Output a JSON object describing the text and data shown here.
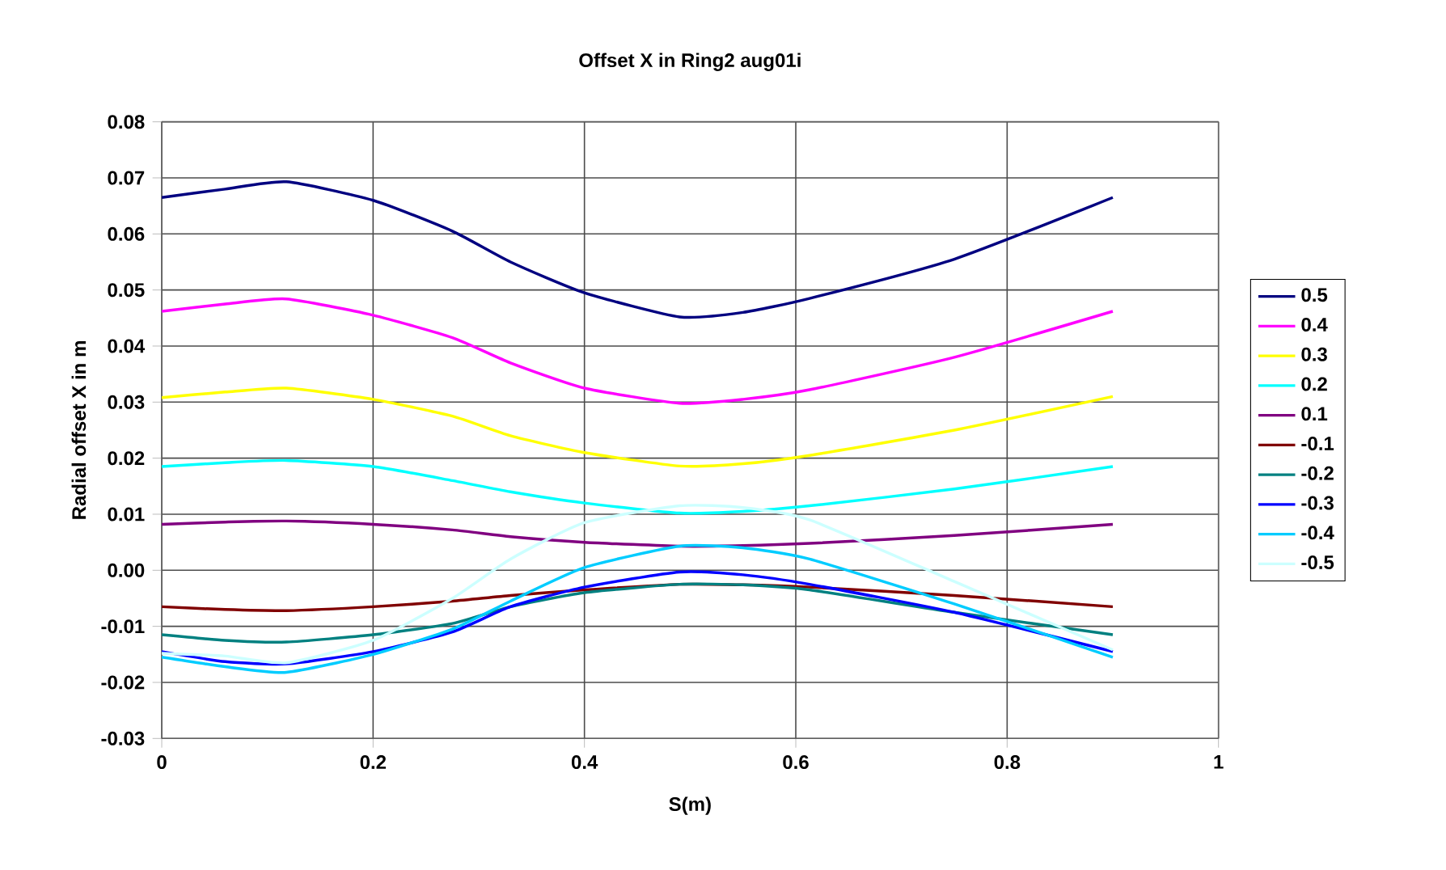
{
  "chart_data": {
    "type": "line",
    "title": "Offset X in Ring2 aug01i",
    "xlabel": "S(m)",
    "ylabel": "Radial offset X in m",
    "x": [
      0,
      0.06,
      0.118,
      0.2,
      0.275,
      0.33,
      0.4,
      0.49,
      0.55,
      0.613,
      0.75,
      0.9
    ],
    "series": [
      {
        "name": "0.5",
        "color": "#000080",
        "values": [
          0.0665,
          0.068,
          0.0693,
          0.066,
          0.0605,
          0.055,
          0.0495,
          0.0452,
          0.046,
          0.0485,
          0.0555,
          0.0665
        ]
      },
      {
        "name": "0.4",
        "color": "#ff00ff",
        "values": [
          0.0462,
          0.0475,
          0.0484,
          0.0455,
          0.0415,
          0.037,
          0.0325,
          0.0298,
          0.0305,
          0.0322,
          0.038,
          0.0462
        ]
      },
      {
        "name": "0.3",
        "color": "#ffff00",
        "values": [
          0.0308,
          0.0318,
          0.0325,
          0.0305,
          0.0275,
          0.024,
          0.021,
          0.0186,
          0.019,
          0.0205,
          0.025,
          0.031
        ]
      },
      {
        "name": "0.2",
        "color": "#00ffff",
        "values": [
          0.0185,
          0.0192,
          0.0196,
          0.0185,
          0.016,
          0.014,
          0.012,
          0.0102,
          0.0105,
          0.0115,
          0.0145,
          0.0185
        ]
      },
      {
        "name": "0.1",
        "color": "#800080",
        "values": [
          0.0082,
          0.0086,
          0.0088,
          0.0082,
          0.0072,
          0.006,
          0.005,
          0.0043,
          0.0044,
          0.0048,
          0.0062,
          0.0082
        ]
      },
      {
        "name": "-0.1",
        "color": "#800000",
        "values": [
          -0.0065,
          -0.007,
          -0.0072,
          -0.0065,
          -0.0055,
          -0.0045,
          -0.0035,
          -0.0025,
          -0.0026,
          -0.003,
          -0.0045,
          -0.0065
        ]
      },
      {
        "name": "-0.2",
        "color": "#008080",
        "values": [
          -0.0115,
          -0.0125,
          -0.0128,
          -0.0115,
          -0.0095,
          -0.0065,
          -0.004,
          -0.0025,
          -0.0026,
          -0.0035,
          -0.0075,
          -0.0115
        ]
      },
      {
        "name": "-0.3",
        "color": "#0000ff",
        "values": [
          -0.0145,
          -0.0163,
          -0.0167,
          -0.0145,
          -0.011,
          -0.0065,
          -0.003,
          -0.0003,
          -0.0008,
          -0.0025,
          -0.0075,
          -0.0145
        ]
      },
      {
        "name": "-0.4",
        "color": "#00ccff",
        "values": [
          -0.0155,
          -0.0172,
          -0.0182,
          -0.015,
          -0.0105,
          -0.0055,
          0.0005,
          0.0043,
          0.004,
          0.002,
          -0.006,
          -0.0155
        ]
      },
      {
        "name": "-0.5",
        "color": "#ccffff",
        "values": [
          -0.0148,
          -0.0153,
          -0.0165,
          -0.0125,
          -0.005,
          0.002,
          0.0085,
          0.0115,
          0.0112,
          0.009,
          -0.002,
          -0.0142
        ]
      }
    ],
    "xlim": [
      0,
      1
    ],
    "xticks": [
      0,
      0.2,
      0.4,
      0.6,
      0.8,
      1
    ],
    "ylim": [
      -0.03,
      0.08
    ],
    "yticks": [
      {
        "value": -0.03,
        "label": "-0.03"
      },
      {
        "value": -0.02,
        "label": "-0.02"
      },
      {
        "value": -0.01,
        "label": "-0.01"
      },
      {
        "value": 0,
        "label": "0.00"
      },
      {
        "value": 0.01,
        "label": "0.01"
      },
      {
        "value": 0.02,
        "label": "0.02"
      },
      {
        "value": 0.03,
        "label": "0.03"
      },
      {
        "value": 0.04,
        "label": "0.04"
      },
      {
        "value": 0.05,
        "label": "0.05"
      },
      {
        "value": 0.06,
        "label": "0.06"
      },
      {
        "value": 0.07,
        "label": "0.07"
      },
      {
        "value": 0.08,
        "label": "0.08"
      }
    ],
    "grid": true,
    "legend": "right",
    "marker": "none",
    "line_style": "solid"
  }
}
